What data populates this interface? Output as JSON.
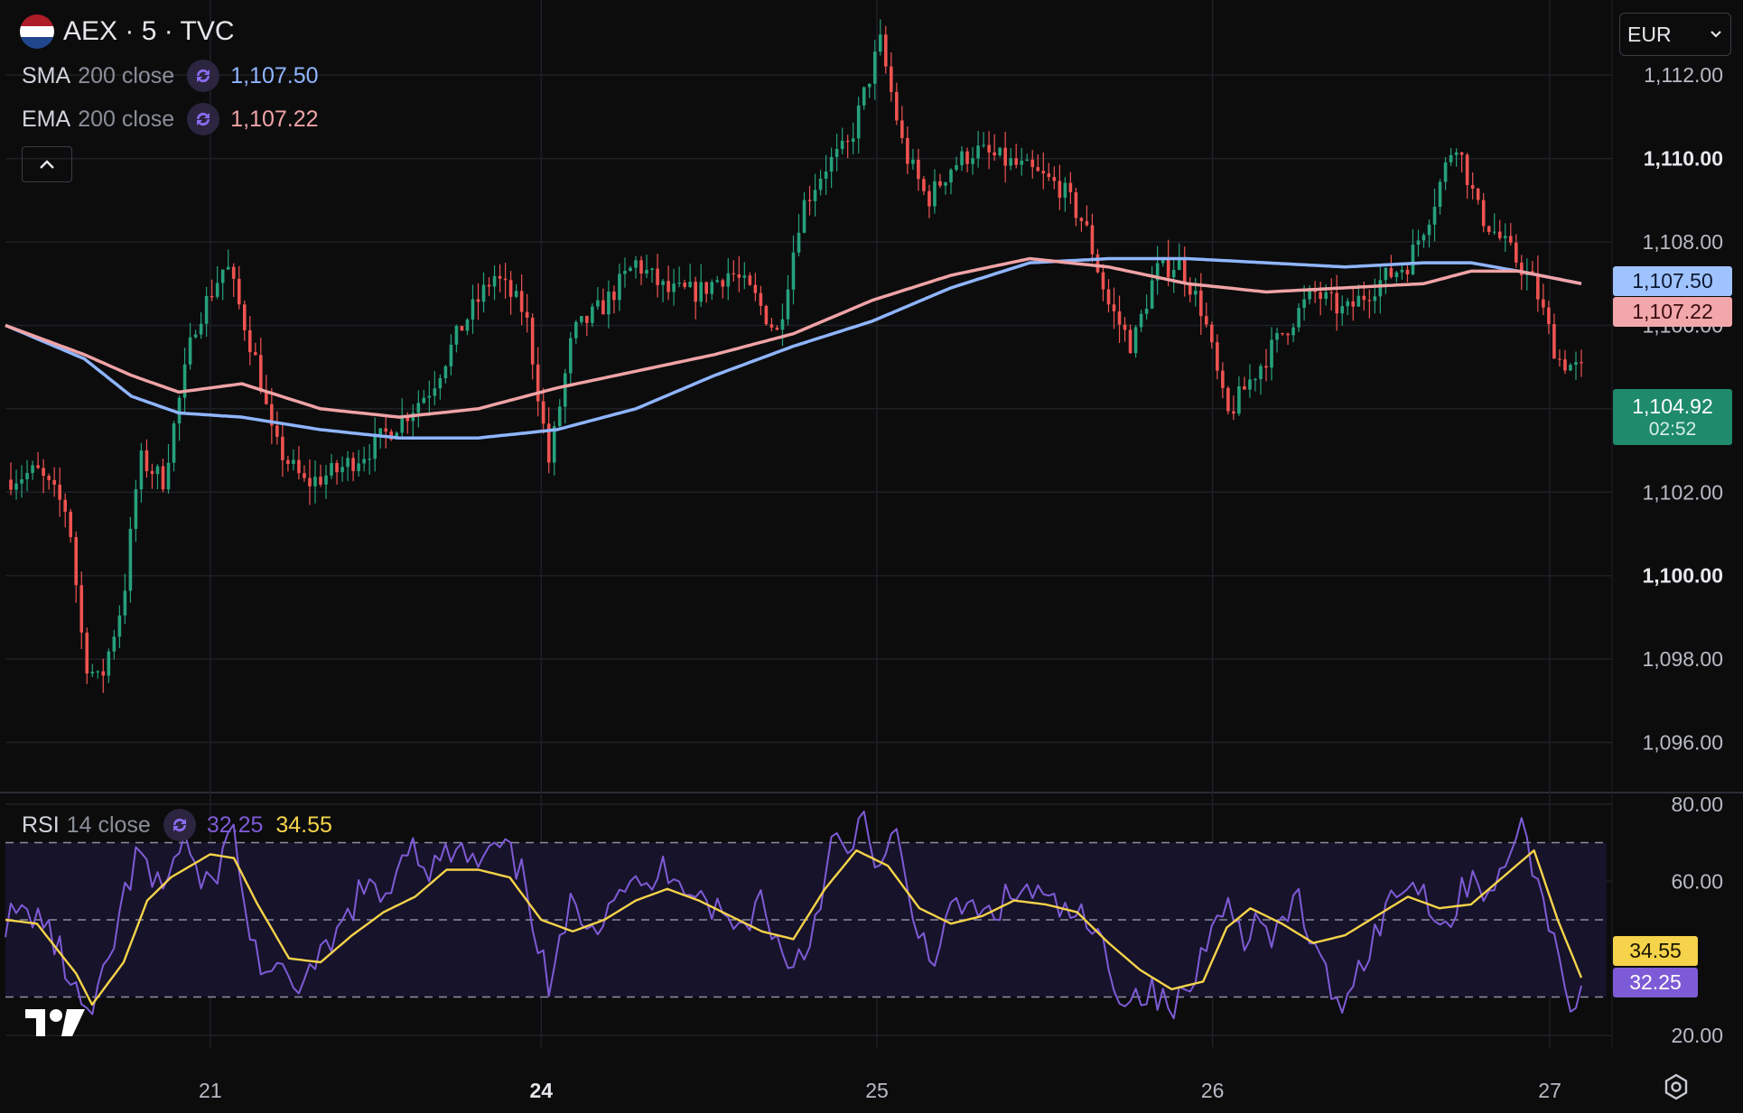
{
  "header": {
    "symbol": "AEX · 5 · TVC",
    "currency": "EUR",
    "flag_colors": [
      "#ae1c28",
      "#ffffff",
      "#21468b"
    ]
  },
  "indicators": {
    "sma": {
      "name": "SMA",
      "params": "200 close",
      "value": "1,107.50",
      "color": "#8fb5ff"
    },
    "ema": {
      "name": "EMA",
      "params": "200 close",
      "value": "1,107.22",
      "color": "#f0a3a6"
    },
    "rsi": {
      "name": "RSI",
      "params": "14 close",
      "value": "32.25",
      "ma_value": "34.55",
      "color": "#7e5bd6",
      "ma_color": "#f5d34a"
    }
  },
  "price_badges": {
    "sma": "1,107.50",
    "ema": "1,107.22",
    "last": "1,104.92",
    "countdown": "02:52"
  },
  "rsi_badges": {
    "ma": "34.55",
    "rsi": "32.25"
  },
  "chart_data": [
    {
      "type": "candlestick",
      "y_ticks": [
        "1,112.00",
        "1,110.00",
        "1,108.00",
        "1,106.00",
        "1,104.00",
        "1,102.00",
        "1,100.00",
        "1,098.00",
        "1,096.00"
      ],
      "ylim": [
        1094.8,
        1113.8
      ],
      "x_ticks": [
        "21",
        "24",
        "25",
        "26",
        "27"
      ],
      "up_color": "#26a17b",
      "down_color": "#ef5350",
      "series": [
        {
          "name": "SMA 200 close",
          "color": "#8fb5ff",
          "points": [
            [
              0,
              1106.0
            ],
            [
              0.05,
              1105.2
            ],
            [
              0.08,
              1104.3
            ],
            [
              0.11,
              1103.9
            ],
            [
              0.15,
              1103.8
            ],
            [
              0.2,
              1103.5
            ],
            [
              0.25,
              1103.3
            ],
            [
              0.3,
              1103.3
            ],
            [
              0.35,
              1103.5
            ],
            [
              0.4,
              1104.0
            ],
            [
              0.45,
              1104.8
            ],
            [
              0.5,
              1105.5
            ],
            [
              0.55,
              1106.1
            ],
            [
              0.6,
              1106.9
            ],
            [
              0.65,
              1107.5
            ],
            [
              0.7,
              1107.6
            ],
            [
              0.75,
              1107.6
            ],
            [
              0.8,
              1107.5
            ],
            [
              0.85,
              1107.4
            ],
            [
              0.9,
              1107.5
            ],
            [
              0.93,
              1107.5
            ],
            [
              0.96,
              1107.3
            ],
            [
              1.0,
              1107.0
            ]
          ]
        },
        {
          "name": "EMA 200 close",
          "color": "#f0a3a6",
          "points": [
            [
              0,
              1106.0
            ],
            [
              0.05,
              1105.3
            ],
            [
              0.08,
              1104.8
            ],
            [
              0.11,
              1104.4
            ],
            [
              0.15,
              1104.6
            ],
            [
              0.2,
              1104.0
            ],
            [
              0.25,
              1103.8
            ],
            [
              0.3,
              1104.0
            ],
            [
              0.35,
              1104.5
            ],
            [
              0.4,
              1104.9
            ],
            [
              0.45,
              1105.3
            ],
            [
              0.5,
              1105.8
            ],
            [
              0.55,
              1106.6
            ],
            [
              0.6,
              1107.2
            ],
            [
              0.65,
              1107.6
            ],
            [
              0.7,
              1107.4
            ],
            [
              0.75,
              1107.0
            ],
            [
              0.8,
              1106.8
            ],
            [
              0.85,
              1106.9
            ],
            [
              0.9,
              1107.0
            ],
            [
              0.93,
              1107.3
            ],
            [
              0.96,
              1107.3
            ],
            [
              1.0,
              1107.0
            ]
          ]
        },
        {
          "name": "Price",
          "color": "#26a17b",
          "points": [
            [
              0,
              1102.3
            ],
            [
              0.02,
              1102.5
            ],
            [
              0.04,
              1101.5
            ],
            [
              0.05,
              1098.0
            ],
            [
              0.06,
              1097.4
            ],
            [
              0.075,
              1099.5
            ],
            [
              0.085,
              1102.8
            ],
            [
              0.1,
              1102.3
            ],
            [
              0.12,
              1106.0
            ],
            [
              0.14,
              1107.5
            ],
            [
              0.16,
              1105.0
            ],
            [
              0.17,
              1103.2
            ],
            [
              0.19,
              1102.2
            ],
            [
              0.21,
              1102.5
            ],
            [
              0.23,
              1103.0
            ],
            [
              0.25,
              1103.7
            ],
            [
              0.27,
              1104.5
            ],
            [
              0.29,
              1106.0
            ],
            [
              0.31,
              1107.2
            ],
            [
              0.33,
              1106.3
            ],
            [
              0.345,
              1102.7
            ],
            [
              0.36,
              1105.8
            ],
            [
              0.38,
              1106.5
            ],
            [
              0.4,
              1107.5
            ],
            [
              0.42,
              1106.8
            ],
            [
              0.44,
              1106.8
            ],
            [
              0.46,
              1107.3
            ],
            [
              0.475,
              1106.7
            ],
            [
              0.49,
              1105.8
            ],
            [
              0.505,
              1108.8
            ],
            [
              0.52,
              1109.8
            ],
            [
              0.535,
              1110.3
            ],
            [
              0.555,
              1112.8
            ],
            [
              0.57,
              1110.2
            ],
            [
              0.585,
              1109.0
            ],
            [
              0.6,
              1109.8
            ],
            [
              0.615,
              1110.2
            ],
            [
              0.63,
              1110.0
            ],
            [
              0.65,
              1109.7
            ],
            [
              0.67,
              1109.3
            ],
            [
              0.685,
              1108.4
            ],
            [
              0.7,
              1106.5
            ],
            [
              0.715,
              1105.5
            ],
            [
              0.73,
              1107.3
            ],
            [
              0.745,
              1107.5
            ],
            [
              0.76,
              1106.3
            ],
            [
              0.775,
              1103.8
            ],
            [
              0.79,
              1104.7
            ],
            [
              0.81,
              1105.8
            ],
            [
              0.83,
              1106.8
            ],
            [
              0.85,
              1106.3
            ],
            [
              0.87,
              1107.0
            ],
            [
              0.89,
              1107.5
            ],
            [
              0.905,
              1108.8
            ],
            [
              0.92,
              1110.5
            ],
            [
              0.935,
              1108.7
            ],
            [
              0.95,
              1108.0
            ],
            [
              0.97,
              1107.0
            ],
            [
              0.985,
              1105.2
            ],
            [
              1.0,
              1104.9
            ]
          ]
        }
      ]
    },
    {
      "type": "line",
      "title": "RSI 14 close",
      "y_ticks": [
        "80.00",
        "60.00",
        "20.00"
      ],
      "ylim": [
        17.0,
        83.0
      ],
      "bands": [
        70,
        50,
        30
      ],
      "series": [
        {
          "name": "RSI",
          "color": "#7e5bd6",
          "points": [
            [
              0,
              50
            ],
            [
              0.02,
              52
            ],
            [
              0.035,
              41
            ],
            [
              0.045,
              30
            ],
            [
              0.055,
              24
            ],
            [
              0.065,
              38
            ],
            [
              0.075,
              55
            ],
            [
              0.085,
              68
            ],
            [
              0.095,
              57
            ],
            [
              0.105,
              64
            ],
            [
              0.115,
              72
            ],
            [
              0.125,
              56
            ],
            [
              0.135,
              64
            ],
            [
              0.145,
              74
            ],
            [
              0.155,
              45
            ],
            [
              0.165,
              37
            ],
            [
              0.18,
              33
            ],
            [
              0.195,
              36
            ],
            [
              0.21,
              45
            ],
            [
              0.225,
              58
            ],
            [
              0.24,
              55
            ],
            [
              0.255,
              71
            ],
            [
              0.27,
              63
            ],
            [
              0.285,
              68
            ],
            [
              0.3,
              64
            ],
            [
              0.315,
              69
            ],
            [
              0.33,
              60
            ],
            [
              0.345,
              31
            ],
            [
              0.36,
              55
            ],
            [
              0.375,
              49
            ],
            [
              0.39,
              60
            ],
            [
              0.405,
              57
            ],
            [
              0.42,
              64
            ],
            [
              0.435,
              59
            ],
            [
              0.45,
              53
            ],
            [
              0.465,
              47
            ],
            [
              0.48,
              56
            ],
            [
              0.495,
              38
            ],
            [
              0.51,
              44
            ],
            [
              0.525,
              71
            ],
            [
              0.535,
              66
            ],
            [
              0.545,
              76
            ],
            [
              0.555,
              63
            ],
            [
              0.565,
              72
            ],
            [
              0.575,
              50
            ],
            [
              0.59,
              41
            ],
            [
              0.605,
              55
            ],
            [
              0.62,
              50
            ],
            [
              0.635,
              55
            ],
            [
              0.65,
              58
            ],
            [
              0.665,
              53
            ],
            [
              0.68,
              51
            ],
            [
              0.695,
              44
            ],
            [
              0.71,
              29
            ],
            [
              0.725,
              32
            ],
            [
              0.74,
              26
            ],
            [
              0.755,
              35
            ],
            [
              0.77,
              57
            ],
            [
              0.785,
              46
            ],
            [
              0.795,
              50
            ],
            [
              0.805,
              43
            ],
            [
              0.82,
              57
            ],
            [
              0.83,
              42
            ],
            [
              0.845,
              28
            ],
            [
              0.86,
              38
            ],
            [
              0.875,
              52
            ],
            [
              0.89,
              61
            ],
            [
              0.905,
              55
            ],
            [
              0.915,
              47
            ],
            [
              0.93,
              63
            ],
            [
              0.945,
              55
            ],
            [
              0.955,
              70
            ],
            [
              0.965,
              73
            ],
            [
              0.975,
              55
            ],
            [
              0.985,
              42
            ],
            [
              0.995,
              27
            ],
            [
              1.0,
              32
            ]
          ]
        },
        {
          "name": "RSI-based MA",
          "color": "#f5d34a",
          "points": [
            [
              0,
              50
            ],
            [
              0.02,
              49
            ],
            [
              0.045,
              36
            ],
            [
              0.055,
              28
            ],
            [
              0.075,
              39
            ],
            [
              0.09,
              55
            ],
            [
              0.105,
              61
            ],
            [
              0.13,
              67
            ],
            [
              0.145,
              66
            ],
            [
              0.16,
              54
            ],
            [
              0.18,
              40
            ],
            [
              0.2,
              39
            ],
            [
              0.22,
              46
            ],
            [
              0.24,
              52
            ],
            [
              0.26,
              56
            ],
            [
              0.28,
              63
            ],
            [
              0.3,
              63
            ],
            [
              0.32,
              61
            ],
            [
              0.34,
              50
            ],
            [
              0.36,
              47
            ],
            [
              0.38,
              50
            ],
            [
              0.4,
              55
            ],
            [
              0.42,
              58
            ],
            [
              0.44,
              55
            ],
            [
              0.46,
              51
            ],
            [
              0.48,
              47
            ],
            [
              0.5,
              45
            ],
            [
              0.52,
              58
            ],
            [
              0.54,
              68
            ],
            [
              0.56,
              64
            ],
            [
              0.58,
              53
            ],
            [
              0.6,
              49
            ],
            [
              0.62,
              51
            ],
            [
              0.64,
              55
            ],
            [
              0.66,
              54
            ],
            [
              0.68,
              52
            ],
            [
              0.7,
              44
            ],
            [
              0.72,
              37
            ],
            [
              0.74,
              32
            ],
            [
              0.76,
              34
            ],
            [
              0.775,
              48
            ],
            [
              0.79,
              53
            ],
            [
              0.81,
              49
            ],
            [
              0.83,
              44
            ],
            [
              0.85,
              46
            ],
            [
              0.87,
              51
            ],
            [
              0.89,
              56
            ],
            [
              0.91,
              53
            ],
            [
              0.93,
              54
            ],
            [
              0.95,
              61
            ],
            [
              0.97,
              68
            ],
            [
              0.985,
              50
            ],
            [
              1.0,
              35
            ]
          ]
        }
      ]
    }
  ]
}
